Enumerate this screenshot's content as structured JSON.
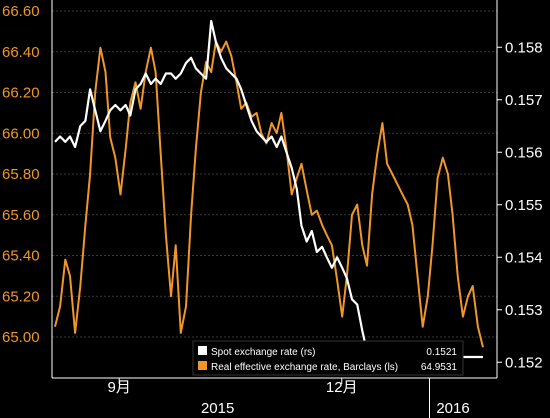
{
  "chart_data": {
    "type": "line",
    "left_axis": {
      "ticks": [
        "65.00",
        "65.20",
        "65.40",
        "65.60",
        "65.80",
        "66.00",
        "66.20",
        "66.40",
        "66.60"
      ],
      "ylim": [
        65.0,
        66.6
      ],
      "color": "#F0962A"
    },
    "right_axis": {
      "ticks": [
        "0.152",
        "0.153",
        "0.154",
        "0.155",
        "0.156",
        "0.157",
        "0.158"
      ],
      "ylim": [
        0.1517,
        0.1589
      ],
      "color": "#FFFFFF"
    },
    "x_axis": {
      "month_labels": [
        {
          "label": "9月",
          "t": 0.15
        },
        {
          "label": "12月",
          "t": 0.67
        }
      ],
      "year_labels": [
        {
          "label": "2015",
          "t": 0.38
        },
        {
          "label": "2016",
          "t": 0.93
        }
      ]
    },
    "grid": true,
    "legend_position": "bottom-center",
    "series": [
      {
        "name": "Spot exchange rate (rs)",
        "last_value": "0.1521",
        "axis": "right",
        "color": "#FFFFFF",
        "t": [
          0.0,
          0.012,
          0.024,
          0.035,
          0.047,
          0.059,
          0.071,
          0.082,
          0.094,
          0.106,
          0.118,
          0.129,
          0.141,
          0.153,
          0.165,
          0.176,
          0.188,
          0.2,
          0.212,
          0.224,
          0.235,
          0.247,
          0.259,
          0.271,
          0.282,
          0.294,
          0.306,
          0.318,
          0.329,
          0.341,
          0.353,
          0.365,
          0.376,
          0.388,
          0.4,
          0.412,
          0.424,
          0.435,
          0.447,
          0.459,
          0.471,
          0.482,
          0.494,
          0.506,
          0.518,
          0.529,
          0.541,
          0.553,
          0.565,
          0.576,
          0.588,
          0.6,
          0.612,
          0.624,
          0.635,
          0.647,
          0.659,
          0.671,
          0.682,
          0.694,
          0.706,
          0.718,
          0.729,
          0.741,
          0.753,
          0.765,
          0.776,
          0.788,
          0.8,
          0.812,
          0.824,
          0.835,
          0.847,
          0.859,
          0.871,
          0.882,
          0.894,
          0.906,
          0.918,
          0.929,
          0.941,
          0.953,
          0.965,
          0.976,
          0.988,
          1.0
        ],
        "values": [
          0.1562,
          0.1563,
          0.1562,
          0.1563,
          0.1561,
          0.1565,
          0.1566,
          0.1572,
          0.1568,
          0.1564,
          0.1566,
          0.1568,
          0.1569,
          0.1568,
          0.1569,
          0.1567,
          0.1572,
          0.1573,
          0.1575,
          0.1573,
          0.1574,
          0.1573,
          0.1575,
          0.1575,
          0.1574,
          0.1575,
          0.1577,
          0.1578,
          0.1576,
          0.1575,
          0.1574,
          0.1585,
          0.1581,
          0.1578,
          0.1576,
          0.1575,
          0.1574,
          0.1572,
          0.1569,
          0.1566,
          0.1564,
          0.1563,
          0.1562,
          0.1563,
          0.1561,
          0.1563,
          0.156,
          0.1557,
          0.1553,
          0.1546,
          0.1543,
          0.1545,
          0.1541,
          0.1542,
          0.154,
          0.1538,
          0.154,
          0.1538,
          0.1536,
          0.1532,
          0.1531,
          0.1526,
          0.1522,
          0.1518,
          0.1521,
          0.152,
          0.1521,
          0.152,
          0.1521,
          0.152,
          0.1521,
          0.1521,
          0.1519,
          0.152,
          0.152,
          0.1521,
          0.152,
          0.1521,
          0.1519,
          0.1521,
          0.1522,
          0.1521,
          0.1521,
          0.1521,
          0.1521,
          0.1521
        ]
      },
      {
        "name": "Real effective exchange rate, Barclays (ls)",
        "last_value": "64.9531",
        "axis": "left",
        "color": "#F0962A",
        "t": [
          0.0,
          0.012,
          0.024,
          0.035,
          0.047,
          0.059,
          0.071,
          0.082,
          0.094,
          0.106,
          0.118,
          0.129,
          0.141,
          0.153,
          0.165,
          0.176,
          0.188,
          0.2,
          0.212,
          0.224,
          0.235,
          0.247,
          0.259,
          0.271,
          0.282,
          0.294,
          0.306,
          0.318,
          0.329,
          0.341,
          0.353,
          0.365,
          0.376,
          0.388,
          0.4,
          0.412,
          0.424,
          0.435,
          0.447,
          0.459,
          0.471,
          0.482,
          0.494,
          0.506,
          0.518,
          0.529,
          0.541,
          0.553,
          0.565,
          0.576,
          0.588,
          0.6,
          0.612,
          0.624,
          0.635,
          0.647,
          0.659,
          0.671,
          0.682,
          0.694,
          0.706,
          0.718,
          0.729,
          0.741,
          0.753,
          0.765,
          0.776,
          0.788,
          0.8,
          0.812,
          0.824,
          0.835,
          0.847,
          0.859,
          0.871,
          0.882,
          0.894,
          0.906,
          0.918,
          0.929,
          0.941,
          0.953,
          0.965,
          0.976,
          0.988,
          1.0
        ],
        "values": [
          65.05,
          65.15,
          65.38,
          65.3,
          65.02,
          65.25,
          65.55,
          65.8,
          66.2,
          66.42,
          66.3,
          65.98,
          65.88,
          65.7,
          65.92,
          66.15,
          66.25,
          66.12,
          66.3,
          66.42,
          66.3,
          65.9,
          65.5,
          65.2,
          65.45,
          65.02,
          65.15,
          65.6,
          65.92,
          66.2,
          66.35,
          66.3,
          66.45,
          66.4,
          66.45,
          66.38,
          66.25,
          66.12,
          66.15,
          66.08,
          66.1,
          66.0,
          65.95,
          66.05,
          66.0,
          66.1,
          65.92,
          65.7,
          65.78,
          65.85,
          65.72,
          65.6,
          65.62,
          65.55,
          65.5,
          65.45,
          65.28,
          65.1,
          65.3,
          65.6,
          65.65,
          65.45,
          65.35,
          65.7,
          65.9,
          66.05,
          65.85,
          65.8,
          65.75,
          65.7,
          65.65,
          65.55,
          65.3,
          65.05,
          65.2,
          65.45,
          65.78,
          65.88,
          65.8,
          65.6,
          65.3,
          65.1,
          65.2,
          65.25,
          65.05,
          64.95
        ]
      }
    ]
  }
}
